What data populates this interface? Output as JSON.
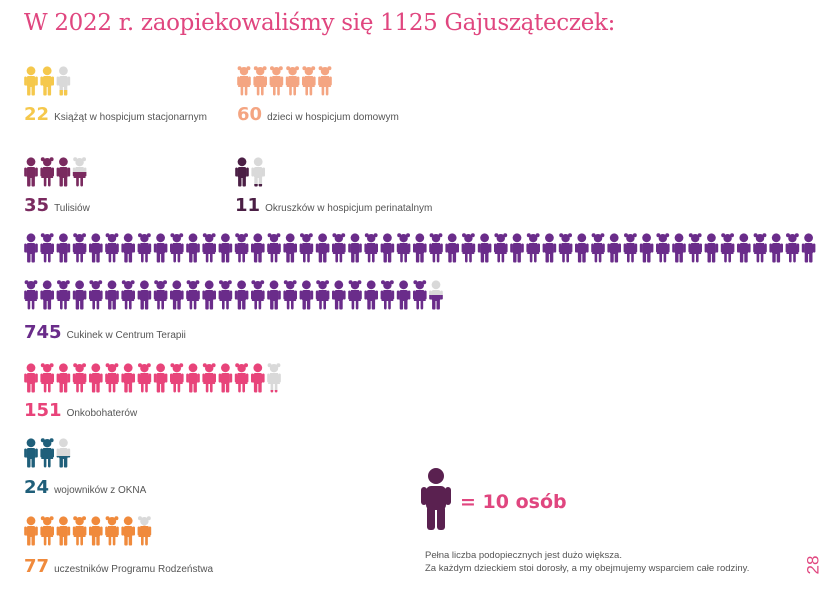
{
  "title": "W 2022 r. zaopiekowaliśmy się 1125 Gajusząteczek:",
  "chart_data": {
    "type": "pictogram",
    "unit_label": "= 10 osób",
    "unit_value": 10,
    "groups": [
      {
        "key": "ksiazat",
        "value": 22,
        "number": "22",
        "label": "Książąt w hospicjum stacjonarnym",
        "figure": "boy",
        "color": "#f5c84c",
        "partial_color": "#d9d9d9",
        "full_icons": 2,
        "partial": true
      },
      {
        "key": "dzieci",
        "value": 60,
        "number": "60",
        "label": "dzieci w hospicjum domowym",
        "figure": "girl",
        "color": "#f4a582",
        "partial_color": "#d9d9d9",
        "full_icons": 6,
        "partial": false
      },
      {
        "key": "tulisiow",
        "value": 35,
        "number": "35",
        "label": "Tulisiów",
        "figure": "mixed",
        "color": "#7a2a5f",
        "partial_color": "#d9d9d9",
        "full_icons": 3,
        "partial": true
      },
      {
        "key": "okruszkow",
        "value": 11,
        "number": "11",
        "label": "Okruszków w hospicjum perinatalnym",
        "figure": "boy",
        "color": "#4b1f45",
        "partial_color": "#d9d9d9",
        "full_icons": 1,
        "partial": true
      },
      {
        "key": "cukinek",
        "value": 745,
        "number": "745",
        "label": "Cukinek w Centrum Terapii",
        "figure": "mixed",
        "color": "#6a2c8a",
        "partial_color": "#d9d9d9",
        "full_icons": 74,
        "partial": true
      },
      {
        "key": "onkobohaterow",
        "value": 151,
        "number": "151",
        "label": "Onkobohaterów",
        "figure": "mixed",
        "color": "#e8447a",
        "partial_color": "#d9d9d9",
        "full_icons": 15,
        "partial": true
      },
      {
        "key": "wojownikow",
        "value": 24,
        "number": "24",
        "label": "wojowników z OKNA",
        "figure": "mixed",
        "color": "#1f5f7a",
        "partial_color": "#d9d9d9",
        "full_icons": 2,
        "partial": true
      },
      {
        "key": "uczestnikow",
        "value": 77,
        "number": "77",
        "label": "uczestników Programu Rodzeństwa",
        "figure": "mixed",
        "color": "#f08a3c",
        "partial_color": "#d9d9d9",
        "full_icons": 7,
        "partial": true
      }
    ]
  },
  "legend": {
    "text": "= 10 osób",
    "icon_color": "#5a2150"
  },
  "note": {
    "line1": "Pełna liczba podopiecznych jest dużo większa.",
    "line2": "Za każdym dzieckiem stoi dorosły, a my obejmujemy wsparciem całe rodziny."
  },
  "page_number": "28",
  "colors": {
    "title": "#e0467f",
    "partial": "#d9d9d9"
  }
}
